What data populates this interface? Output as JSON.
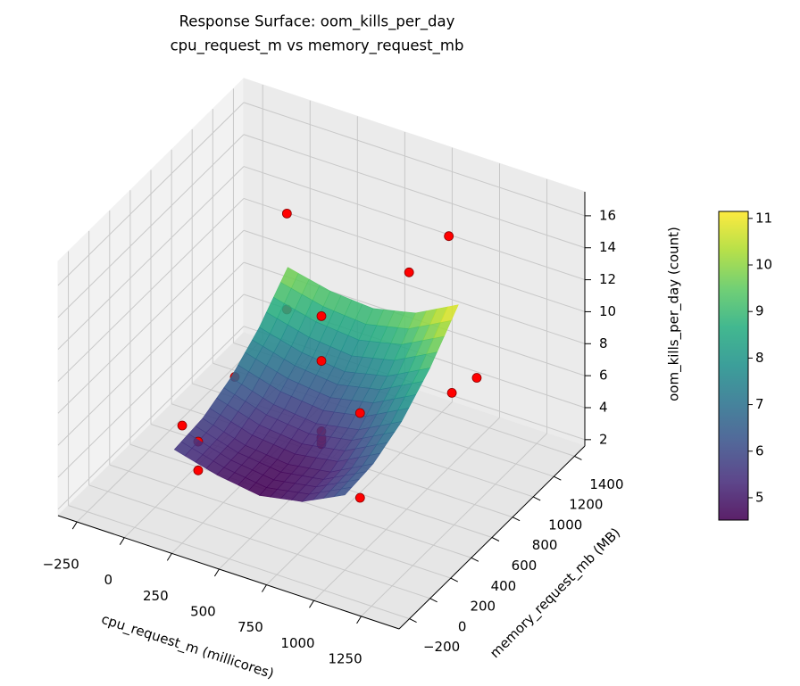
{
  "chart_data": {
    "type": "surface3d",
    "title": "Response Surface: oom_kills_per_day",
    "subtitle": "cpu_request_m vs memory_request_mb",
    "x_label": "cpu_request_m (millicores)",
    "y_label": "memory_request_mb (MB)",
    "z_label": "oom_kills_per_day (count)",
    "xlim": [
      -350,
      1450
    ],
    "xticks": [
      {
        "value": -250,
        "label": "−250"
      },
      0,
      250,
      500,
      750,
      1000,
      1250
    ],
    "ylim": [
      -300,
      1500
    ],
    "yticks": [
      {
        "value": -200,
        "label": "−200"
      },
      0,
      200,
      400,
      600,
      800,
      1000,
      1200,
      1400
    ],
    "zlim": [
      1.6,
      17.5
    ],
    "zticks": [
      2,
      4,
      6,
      8,
      10,
      12,
      14,
      16
    ],
    "grid": true,
    "surface": {
      "x": [
        100,
        325,
        550,
        775,
        1000
      ],
      "y": [
        0,
        275,
        550,
        825,
        1100
      ],
      "z": [
        [
          5.6,
          4.9,
          4.5,
          5.0,
          6.3
        ],
        [
          5.8,
          5.0,
          4.7,
          5.1,
          6.5
        ],
        [
          6.6,
          5.8,
          5.5,
          6.0,
          7.4
        ],
        [
          8.0,
          7.3,
          7.0,
          7.6,
          9.0
        ],
        [
          10.0,
          9.4,
          9.2,
          9.8,
          11.2
        ]
      ],
      "colormap": "viridis",
      "clim": [
        4.52,
        11.15
      ],
      "colorbar_ticks": [
        5,
        6,
        7,
        8,
        9,
        10,
        11
      ]
    },
    "scatter": {
      "x": [
        150,
        150,
        950,
        650,
        -16,
        1250,
        1116,
        -16,
        150,
        150,
        550,
        550,
        550,
        550,
        550,
        550,
        950,
        950
      ],
      "y": [
        1000,
        1000,
        1100,
        1266,
        800,
        820,
        825,
        290,
        140,
        140,
        600,
        600,
        600,
        600,
        600,
        600,
        240,
        240
      ],
      "z": [
        14.2,
        8.2,
        15.3,
        10.8,
        4.6,
        9.4,
        7.9,
        4.8,
        5.4,
        3.6,
        4.7,
        4.3,
        4.1,
        3.9,
        9.1,
        11.9,
        4.4,
        9.7
      ],
      "color": "#ff0000"
    }
  }
}
